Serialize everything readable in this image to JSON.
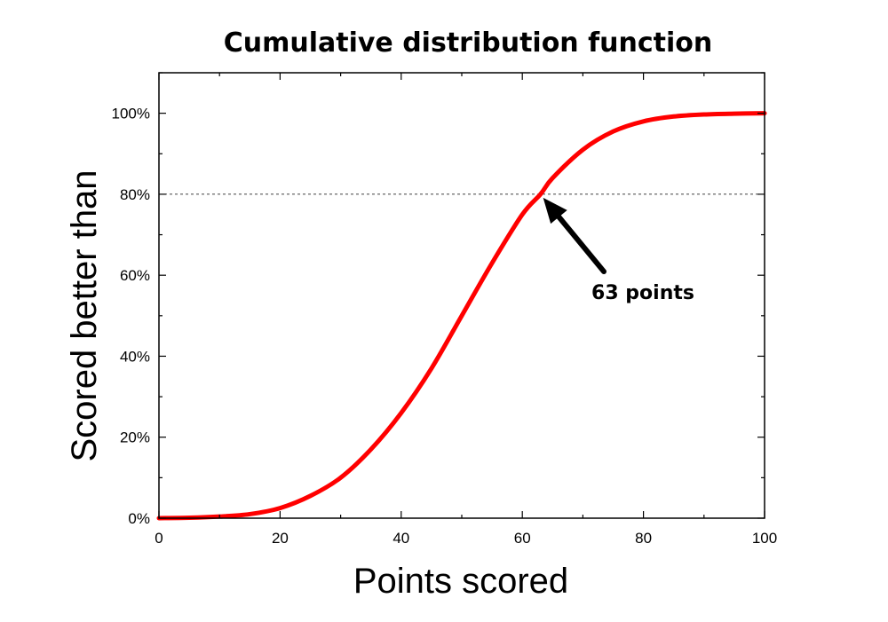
{
  "chart_data": {
    "type": "line",
    "title": "Cumulative distribution function",
    "xlabel": "Points scored",
    "ylabel": "Scored better than",
    "xlim": [
      0,
      100
    ],
    "ylim": [
      0,
      110
    ],
    "x_ticks": [
      0,
      20,
      40,
      60,
      80,
      100
    ],
    "y_ticks": [
      0,
      20,
      40,
      60,
      80,
      100
    ],
    "y_tick_labels": [
      "0%",
      "20%",
      "40%",
      "60%",
      "80%",
      "100%"
    ],
    "grid": false,
    "series": [
      {
        "color": "#ff0000",
        "x": [
          0,
          5,
          10,
          15,
          20,
          25,
          30,
          35,
          40,
          45,
          50,
          55,
          60,
          63,
          65,
          70,
          75,
          80,
          85,
          90,
          95,
          100
        ],
        "y": [
          0,
          0.1,
          0.4,
          1.0,
          2.5,
          5.5,
          10,
          17,
          26,
          37,
          50,
          63,
          75,
          80,
          84,
          91,
          95.5,
          98,
          99.2,
          99.7,
          99.9,
          100
        ]
      }
    ],
    "reference_line": {
      "y": 80,
      "style": "dashed"
    },
    "annotation": {
      "text": "63 points",
      "x": 63,
      "y": 80
    }
  }
}
